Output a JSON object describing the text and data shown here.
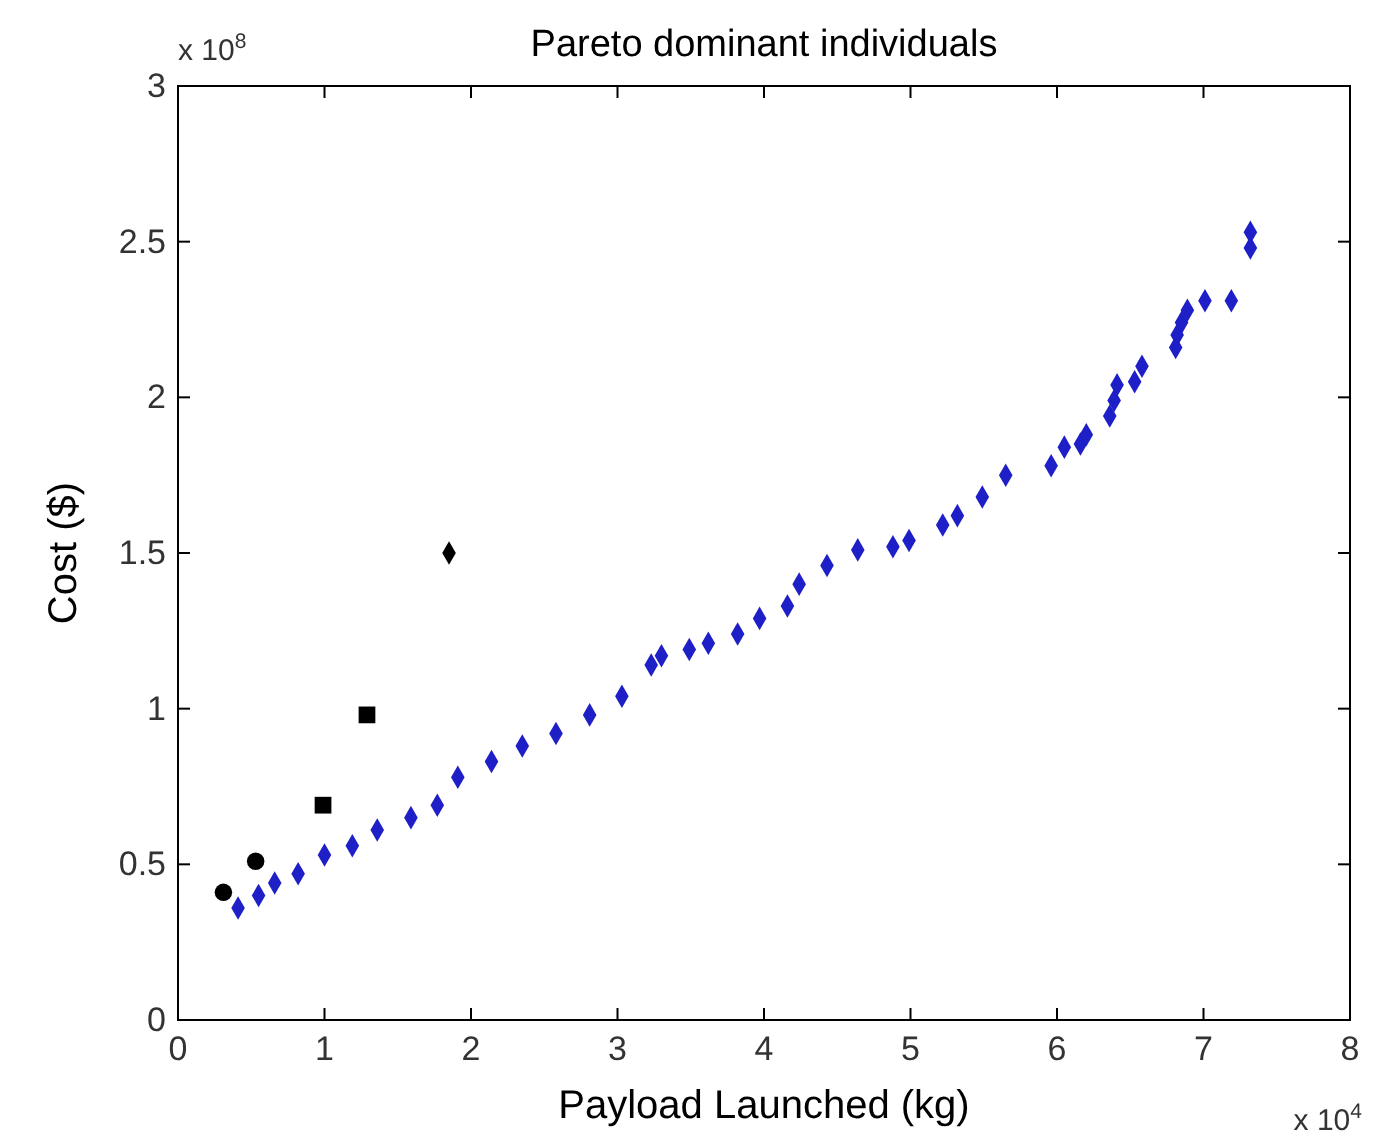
{
  "chart_data": {
    "type": "scatter",
    "title": "Pareto dominant individuals",
    "xlabel": "Payload Launched (kg)",
    "ylabel": "Cost ($)",
    "annotations": [
      "x 10$^{8}$",
      "x 10$^{4}$"
    ],
    "xlim": [
      0,
      8
    ],
    "xticks": [
      0,
      1,
      2,
      3,
      4,
      5,
      6,
      7,
      8
    ],
    "ylim": [
      0,
      3
    ],
    "yticks": [
      0,
      0.5,
      1,
      1.5,
      2,
      2.5,
      3
    ],
    "grid": false,
    "series": [
      {
        "color": "#1f1fc8",
        "marker": "diamond",
        "x": [
          0.41,
          0.55,
          0.66,
          0.82,
          1.0,
          1.19,
          1.36,
          1.59,
          1.77,
          1.91,
          2.14,
          2.35,
          2.58,
          2.81,
          3.03,
          3.23,
          3.3,
          3.49,
          3.62,
          3.82,
          3.97,
          4.16,
          4.24,
          4.43,
          4.64,
          4.88,
          4.99,
          5.22,
          5.32,
          5.49,
          5.65,
          5.96,
          6.05,
          6.16,
          6.2,
          6.36,
          6.39,
          6.41,
          6.53,
          6.58,
          6.81,
          6.82,
          6.85,
          6.89,
          7.01,
          7.19,
          7.32,
          7.32
        ],
        "values": [
          0.36,
          0.4,
          0.44,
          0.47,
          0.53,
          0.56,
          0.61,
          0.65,
          0.69,
          0.78,
          0.83,
          0.88,
          0.92,
          0.98,
          1.04,
          1.14,
          1.17,
          1.19,
          1.21,
          1.24,
          1.29,
          1.33,
          1.4,
          1.46,
          1.51,
          1.52,
          1.54,
          1.59,
          1.62,
          1.68,
          1.75,
          1.78,
          1.84,
          1.85,
          1.88,
          1.94,
          1.99,
          2.04,
          2.05,
          2.1,
          2.16,
          2.2,
          2.24,
          2.28,
          2.31,
          2.31,
          2.48,
          2.53
        ]
      },
      {
        "color": "#000000",
        "marker": "circle",
        "x": [
          0.31,
          0.53
        ],
        "values": [
          0.41,
          0.51
        ]
      },
      {
        "color": "#000000",
        "marker": "square",
        "x": [
          0.99,
          1.29
        ],
        "values": [
          0.69,
          0.98
        ]
      },
      {
        "color": "#000000",
        "marker": "diamond",
        "x": [
          1.85
        ],
        "values": [
          1.5
        ]
      }
    ]
  }
}
